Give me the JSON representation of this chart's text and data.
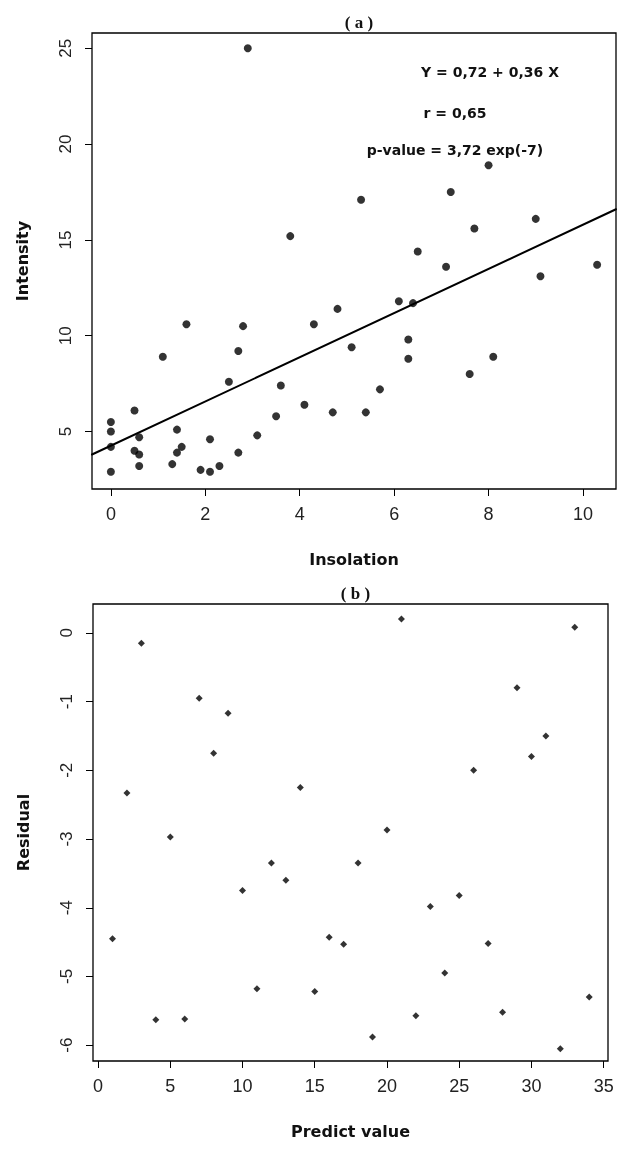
{
  "chart_data": [
    {
      "type": "scatter",
      "title": "( a )",
      "xlabel": "Insolation",
      "ylabel": "Intensity",
      "xlim": [
        -0.4,
        10.7
      ],
      "ylim": [
        2,
        25.8
      ],
      "xticks": [
        0,
        2,
        4,
        6,
        8,
        10
      ],
      "yticks": [
        5,
        10,
        15,
        20,
        25
      ],
      "grid": false,
      "marker": "circle",
      "annotations": [
        "Y = 0,72 + 0,36 X",
        "r = 0,65",
        "p-value = 3,72 exp(-7)"
      ],
      "series": [
        {
          "color": "#000000",
          "x": [
            0,
            0,
            0,
            0,
            0.5,
            0.5,
            0.6,
            0.6,
            0.6,
            1.1,
            1.3,
            1.4,
            1.4,
            1.5,
            1.6,
            1.9,
            2.1,
            2.1,
            2.3,
            2.5,
            2.7,
            2.7,
            2.8,
            2.9,
            3.1,
            3.5,
            3.6,
            3.8,
            4.1,
            4.3,
            4.7,
            4.8,
            5.1,
            5.3,
            5.4,
            5.7,
            6.1,
            6.3,
            6.3,
            6.4,
            6.5,
            7.1,
            7.2,
            7.6,
            7.7,
            8.0,
            8.1,
            9.0,
            9.1,
            10.3
          ],
          "values": [
            5.5,
            5.0,
            4.2,
            2.9,
            6.1,
            4.0,
            3.8,
            4.7,
            3.2,
            8.9,
            3.3,
            5.1,
            3.9,
            4.2,
            10.6,
            3.0,
            2.9,
            4.6,
            3.2,
            7.6,
            9.2,
            3.9,
            10.5,
            25.0,
            4.8,
            5.8,
            7.4,
            15.2,
            6.4,
            10.6,
            6.0,
            11.4,
            9.4,
            17.1,
            6.0,
            7.2,
            11.8,
            9.8,
            8.8,
            11.7,
            14.4,
            13.6,
            17.5,
            8.0,
            15.6,
            18.9,
            8.9,
            16.1,
            13.1,
            13.7
          ]
        },
        {
          "type": "line",
          "color": "#000000",
          "x": [
            -0.4,
            10.7
          ],
          "values": [
            3.8,
            16.6
          ],
          "marker": "none",
          "line_style": "solid"
        }
      ]
    },
    {
      "type": "scatter",
      "title": "( b )",
      "xlabel": "Predict value",
      "ylabel": "Residual",
      "xlim": [
        -0.35,
        35.3
      ],
      "ylim": [
        -6.23,
        0.42
      ],
      "xticks": [
        0,
        5,
        10,
        15,
        20,
        25,
        30,
        35
      ],
      "yticks": [
        -6,
        -5,
        -4,
        -3,
        -2,
        -1,
        0
      ],
      "grid": false,
      "marker": "diamond",
      "series": [
        {
          "color": "#000000",
          "x": [
            1,
            2,
            3,
            4,
            5,
            6,
            7,
            8,
            9,
            10,
            11,
            12,
            13,
            14,
            15,
            16,
            17,
            18,
            19,
            20,
            21,
            22,
            23,
            24,
            25,
            26,
            27,
            28,
            29,
            30,
            31,
            32,
            33,
            34
          ],
          "values": [
            -4.45,
            -2.33,
            -0.15,
            -5.63,
            -2.97,
            -5.62,
            -0.95,
            -1.75,
            -1.17,
            -3.75,
            -5.18,
            -3.35,
            -3.6,
            -2.25,
            -5.22,
            -4.43,
            -4.53,
            -3.35,
            -5.88,
            -2.87,
            0.2,
            -5.57,
            -3.98,
            -4.95,
            -3.82,
            -2.0,
            -4.52,
            -5.52,
            -0.8,
            -1.8,
            -1.5,
            -6.05,
            0.08,
            -5.3
          ]
        }
      ]
    }
  ]
}
